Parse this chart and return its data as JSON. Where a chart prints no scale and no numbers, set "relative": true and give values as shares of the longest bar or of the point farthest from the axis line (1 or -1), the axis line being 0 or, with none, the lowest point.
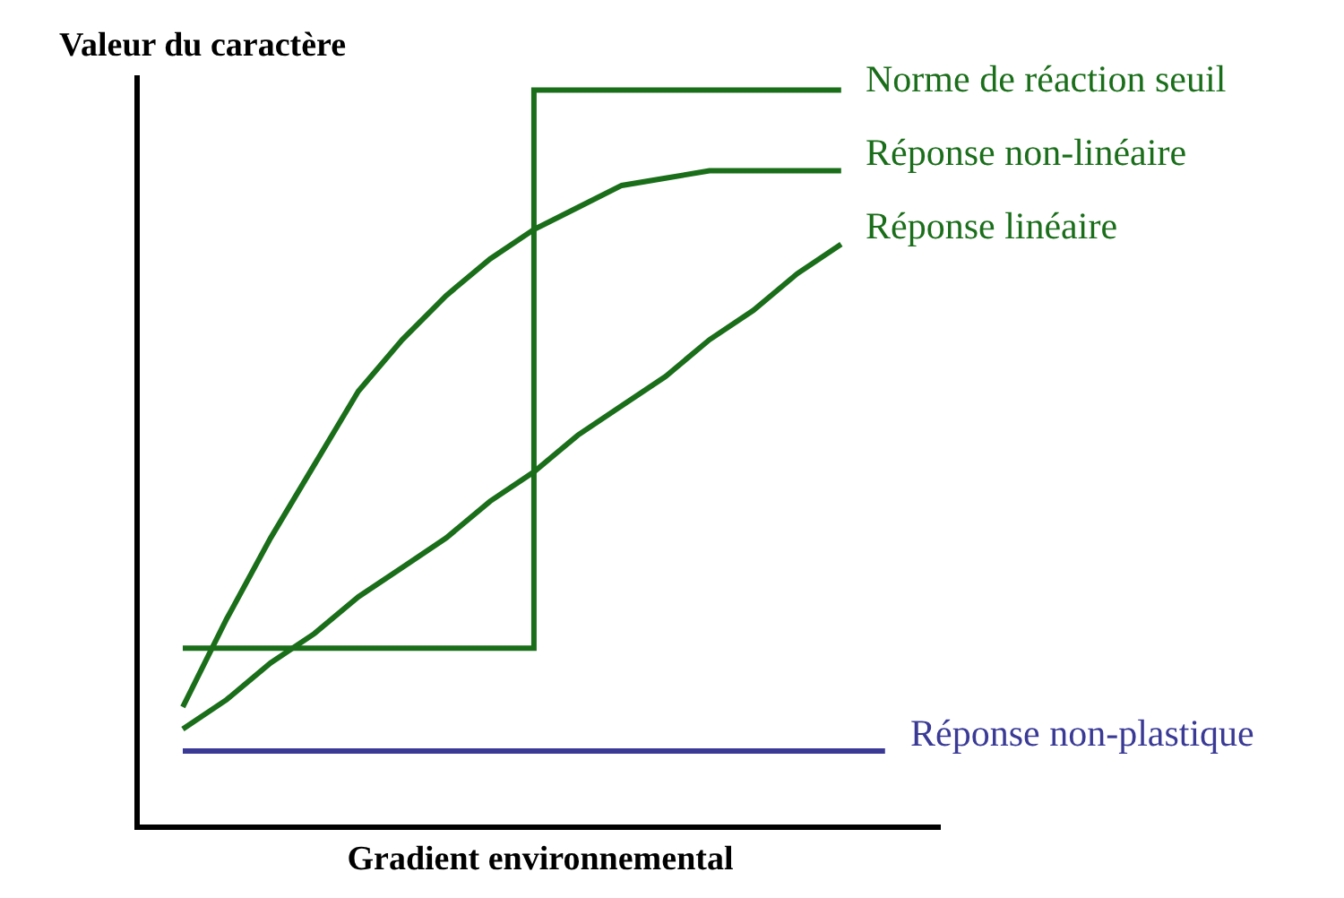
{
  "chart_data": {
    "type": "line",
    "relative": true,
    "xlabel": "Gradient environnemental",
    "ylabel": "Valeur du caractère",
    "categories": [
      null,
      null,
      null,
      null,
      null,
      null,
      null,
      null,
      null,
      null,
      null,
      null,
      null,
      null,
      null,
      null,
      null
    ],
    "legend": false,
    "marker": "none",
    "line_style": "solid",
    "series": [
      {
        "name": "Norme de réaction seuil",
        "type": "step",
        "color": "#1a6e1a",
        "values": [
          0.24,
          0.24,
          0.24,
          0.24,
          0.24,
          0.24,
          0.24,
          0.24,
          1.0,
          1.0,
          1.0,
          1.0,
          1.0,
          1.0,
          1.0,
          1.0,
          null
        ]
      },
      {
        "name": "Réponse non-linéaire",
        "color": "#1a6e1a",
        "values": [
          0.16,
          0.28,
          0.39,
          0.49,
          0.59,
          0.66,
          0.72,
          0.77,
          0.81,
          0.84,
          0.87,
          0.88,
          0.89,
          0.89,
          0.89,
          0.89,
          null
        ]
      },
      {
        "name": "Réponse linéaire",
        "color": "#1a6e1a",
        "values": [
          0.13,
          0.17,
          0.22,
          0.26,
          0.31,
          0.35,
          0.39,
          0.44,
          0.48,
          0.53,
          0.57,
          0.61,
          0.66,
          0.7,
          0.75,
          0.79,
          null
        ]
      },
      {
        "name": "Réponse non-plastique",
        "color": "#3a3a96",
        "values": [
          0.1,
          0.1,
          0.1,
          0.1,
          0.1,
          0.1,
          0.1,
          0.1,
          0.1,
          0.1,
          0.1,
          0.1,
          0.1,
          0.1,
          0.1,
          0.1,
          0.1
        ]
      }
    ]
  }
}
